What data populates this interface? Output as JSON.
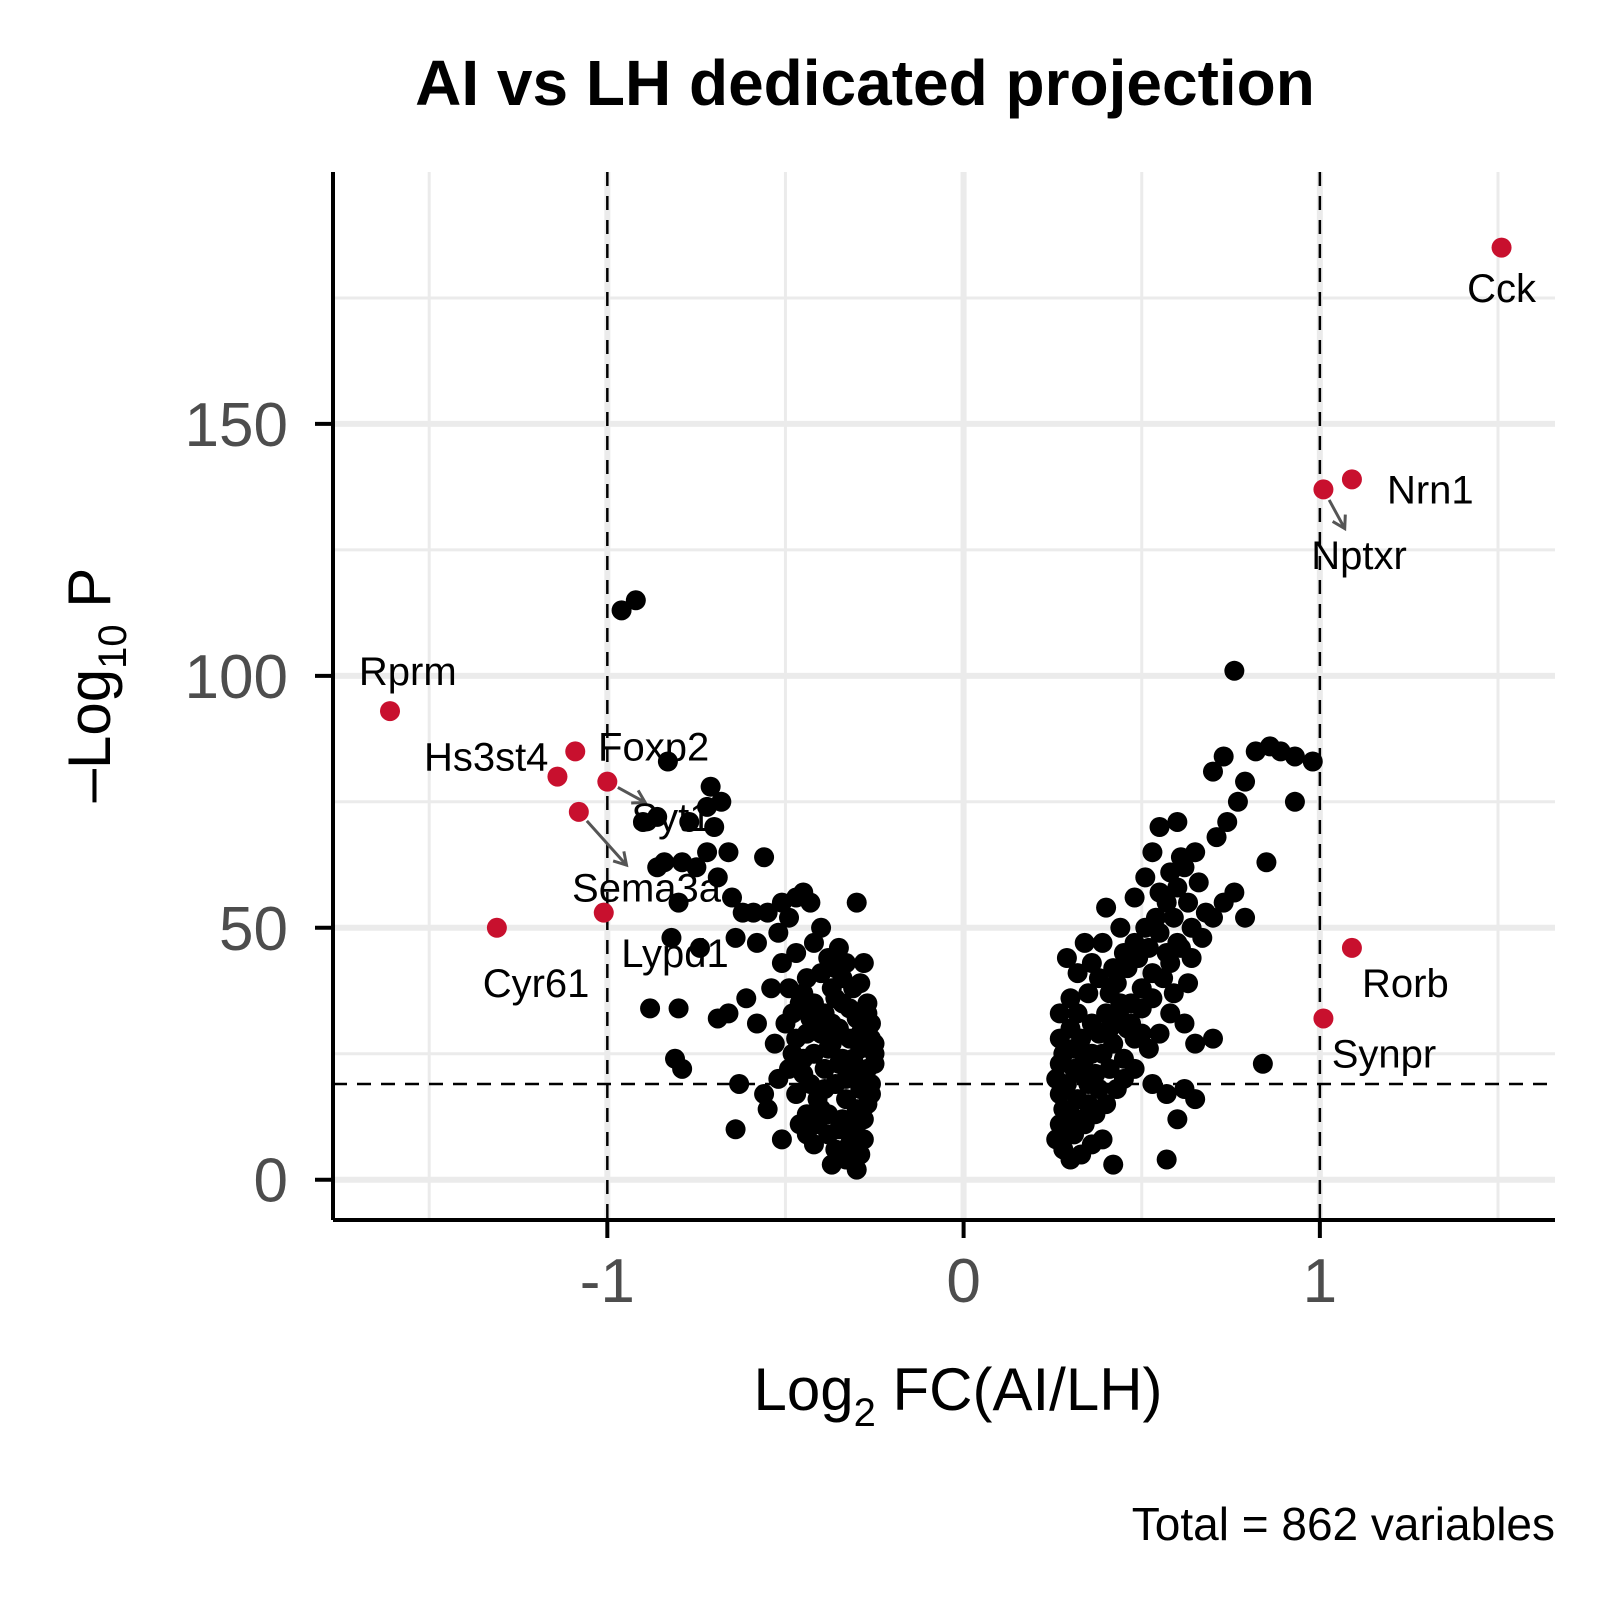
{
  "chart_data": {
    "type": "scatter",
    "title": "AI vs LH dedicated projection",
    "xlabel": {
      "prefix": "Log",
      "sub": "2",
      "suffix": " FC(AI/LH)"
    },
    "ylabel": {
      "prefix": "–Log",
      "sub": "10",
      "suffix": " P"
    },
    "caption": "Total = 862 variables",
    "xlim": [
      -1.77,
      1.66
    ],
    "ylim": [
      -8,
      200
    ],
    "x_ticks": [
      {
        "value": -1,
        "label": "-1"
      },
      {
        "value": 0,
        "label": "0"
      },
      {
        "value": 1,
        "label": "1"
      }
    ],
    "y_ticks": [
      {
        "value": 0,
        "label": "0"
      },
      {
        "value": 50,
        "label": "50"
      },
      {
        "value": 100,
        "label": "100"
      },
      {
        "value": 150,
        "label": "150"
      }
    ],
    "grid": true,
    "fc_cutoff": [
      -1,
      1
    ],
    "p_cutoff": 19,
    "colors": {
      "significant": "#c8102e",
      "other": "#000000",
      "grid": "#ebebeb",
      "connector": "#555555"
    },
    "highlighted": [
      {
        "gene": "Cck",
        "x": 1.51,
        "y": 185,
        "lx": 1.51,
        "ly": 177
      },
      {
        "gene": "Nrn1",
        "x": 1.09,
        "y": 139,
        "lx": 1.31,
        "ly": 137
      },
      {
        "gene": "Nptxr",
        "x": 1.01,
        "y": 137,
        "lx": 1.11,
        "ly": 124,
        "arrow": true
      },
      {
        "gene": "Rorb",
        "x": 1.09,
        "y": 46,
        "lx": 1.24,
        "ly": 39
      },
      {
        "gene": "Synpr",
        "x": 1.01,
        "y": 32,
        "lx": 1.18,
        "ly": 25
      },
      {
        "gene": "Rprm",
        "x": -1.61,
        "y": 93,
        "lx": -1.56,
        "ly": 101
      },
      {
        "gene": "Hs3st4",
        "x": -1.14,
        "y": 80,
        "lx": -1.34,
        "ly": 84
      },
      {
        "gene": "Foxp2",
        "x": -1.09,
        "y": 85,
        "lx": -0.87,
        "ly": 86
      },
      {
        "gene": "Syt1",
        "x": -1.0,
        "y": 79,
        "lx": -0.82,
        "ly": 72,
        "arrow": true
      },
      {
        "gene": "Sema3a",
        "x": -1.08,
        "y": 73,
        "lx": -0.89,
        "ly": 58,
        "arrow": true
      },
      {
        "gene": "Lypd1",
        "x": -1.01,
        "y": 53,
        "lx": -0.81,
        "ly": 45
      },
      {
        "gene": "Cyr61",
        "x": -1.31,
        "y": 50,
        "lx": -1.2,
        "ly": 39
      }
    ],
    "points": [
      [
        -0.96,
        113
      ],
      [
        -0.92,
        115
      ],
      [
        0.76,
        101
      ],
      [
        -0.83,
        83
      ],
      [
        -0.71,
        78
      ],
      [
        -0.68,
        75
      ],
      [
        -0.72,
        74
      ],
      [
        -0.7,
        70
      ],
      [
        -0.86,
        72
      ],
      [
        -0.9,
        71
      ],
      [
        -0.77,
        71
      ],
      [
        -0.66,
        65
      ],
      [
        -0.72,
        65
      ],
      [
        -0.79,
        63
      ],
      [
        -0.84,
        63
      ],
      [
        -0.86,
        62
      ],
      [
        -0.75,
        62
      ],
      [
        -0.56,
        64
      ],
      [
        -0.69,
        60
      ],
      [
        -0.8,
        55
      ],
      [
        -0.65,
        56
      ],
      [
        -0.59,
        53
      ],
      [
        -0.62,
        53
      ],
      [
        -0.55,
        53
      ],
      [
        -0.49,
        52
      ],
      [
        -0.51,
        55
      ],
      [
        -0.47,
        56
      ],
      [
        -0.45,
        57
      ],
      [
        -0.43,
        55
      ],
      [
        -0.52,
        49
      ],
      [
        -0.58,
        47
      ],
      [
        -0.64,
        48
      ],
      [
        -0.74,
        46
      ],
      [
        -0.82,
        48
      ],
      [
        -0.4,
        50
      ],
      [
        -0.35,
        46
      ],
      [
        -0.3,
        55
      ],
      [
        -0.28,
        43
      ],
      [
        -0.44,
        40
      ],
      [
        -0.54,
        38
      ],
      [
        -0.61,
        36
      ],
      [
        -0.66,
        33
      ],
      [
        -0.69,
        32
      ],
      [
        -0.8,
        34
      ],
      [
        -0.88,
        34
      ],
      [
        -0.81,
        24
      ],
      [
        -0.79,
        22
      ],
      [
        -0.63,
        19
      ],
      [
        -0.56,
        17
      ],
      [
        -0.55,
        14
      ],
      [
        -0.64,
        10
      ],
      [
        -0.51,
        8
      ],
      [
        -0.42,
        7
      ],
      [
        -0.36,
        6
      ],
      [
        -0.33,
        4
      ],
      [
        -0.3,
        2
      ],
      [
        -0.37,
        3
      ],
      [
        -0.46,
        11
      ],
      [
        -0.49,
        22
      ],
      [
        -0.53,
        27
      ],
      [
        -0.58,
        31
      ],
      [
        -0.48,
        33
      ],
      [
        -0.45,
        37
      ],
      [
        -0.4,
        41
      ],
      [
        -0.38,
        44
      ],
      [
        -0.33,
        43
      ],
      [
        -0.29,
        39
      ],
      [
        -0.27,
        35
      ],
      [
        -0.26,
        31
      ],
      [
        -0.25,
        27
      ],
      [
        -0.25,
        23
      ],
      [
        -0.26,
        19
      ],
      [
        -0.27,
        15
      ],
      [
        -0.28,
        12
      ],
      [
        -0.3,
        9
      ],
      [
        -0.32,
        7
      ],
      [
        -0.35,
        10
      ],
      [
        -0.38,
        13
      ],
      [
        -0.41,
        16
      ],
      [
        -0.43,
        19
      ],
      [
        -0.45,
        24
      ],
      [
        -0.47,
        28
      ],
      [
        -0.5,
        31
      ],
      [
        -0.41,
        30
      ],
      [
        -0.37,
        27
      ],
      [
        -0.34,
        24
      ],
      [
        -0.31,
        21
      ],
      [
        -0.29,
        18
      ],
      [
        -0.33,
        16
      ],
      [
        -0.36,
        19
      ],
      [
        -0.39,
        22
      ],
      [
        -0.42,
        25
      ],
      [
        -0.44,
        29
      ],
      [
        -0.39,
        33
      ],
      [
        -0.35,
        30
      ],
      [
        -0.32,
        28
      ],
      [
        -0.29,
        26
      ],
      [
        -0.27,
        22
      ],
      [
        -0.3,
        14
      ],
      [
        -0.34,
        12
      ],
      [
        -0.38,
        9
      ],
      [
        -0.4,
        14
      ],
      [
        -0.44,
        13
      ],
      [
        -0.47,
        17
      ],
      [
        -0.52,
        20
      ],
      [
        -0.36,
        36
      ],
      [
        -0.32,
        34
      ],
      [
        -0.28,
        31
      ],
      [
        -0.31,
        38
      ],
      [
        -0.34,
        40
      ],
      [
        -0.37,
        38
      ],
      [
        -0.42,
        35
      ],
      [
        -0.46,
        35
      ],
      [
        -0.49,
        38
      ],
      [
        -0.51,
        43
      ],
      [
        -0.47,
        45
      ],
      [
        -0.42,
        47
      ],
      [
        -0.36,
        42
      ],
      [
        -0.3,
        32
      ],
      [
        -0.26,
        28
      ],
      [
        -0.25,
        25
      ],
      [
        -0.26,
        17
      ],
      [
        -0.28,
        20
      ],
      [
        -0.31,
        24
      ],
      [
        -0.33,
        20
      ],
      [
        -0.35,
        23
      ],
      [
        -0.38,
        26
      ],
      [
        -0.4,
        29
      ],
      [
        -0.43,
        32
      ],
      [
        -0.45,
        21
      ],
      [
        -0.48,
        25
      ],
      [
        -0.37,
        31
      ],
      [
        -0.34,
        35
      ],
      [
        -0.29,
        29
      ],
      [
        -0.27,
        33
      ],
      [
        -0.39,
        18
      ],
      [
        -0.41,
        11
      ],
      [
        -0.44,
        9
      ],
      [
        -0.31,
        11
      ],
      [
        -0.28,
        8
      ],
      [
        -0.32,
        5
      ],
      [
        -0.29,
        5
      ],
      [
        0.26,
        20
      ],
      [
        0.27,
        17
      ],
      [
        0.28,
        14
      ],
      [
        0.27,
        11
      ],
      [
        0.26,
        8
      ],
      [
        0.28,
        6
      ],
      [
        0.3,
        4
      ],
      [
        0.33,
        5
      ],
      [
        0.36,
        7
      ],
      [
        0.39,
        8
      ],
      [
        0.31,
        9
      ],
      [
        0.34,
        11
      ],
      [
        0.37,
        13
      ],
      [
        0.4,
        15
      ],
      [
        0.43,
        18
      ],
      [
        0.3,
        13
      ],
      [
        0.32,
        16
      ],
      [
        0.35,
        19
      ],
      [
        0.29,
        19
      ],
      [
        0.31,
        22
      ],
      [
        0.34,
        24
      ],
      [
        0.37,
        21
      ],
      [
        0.39,
        25
      ],
      [
        0.42,
        27
      ],
      [
        0.45,
        24
      ],
      [
        0.48,
        28
      ],
      [
        0.33,
        28
      ],
      [
        0.28,
        25
      ],
      [
        0.27,
        28
      ],
      [
        0.3,
        30
      ],
      [
        0.32,
        33
      ],
      [
        0.36,
        31
      ],
      [
        0.4,
        33
      ],
      [
        0.44,
        32
      ],
      [
        0.47,
        35
      ],
      [
        0.5,
        38
      ],
      [
        0.53,
        36
      ],
      [
        0.56,
        40
      ],
      [
        0.58,
        43
      ],
      [
        0.61,
        46
      ],
      [
        0.64,
        44
      ],
      [
        0.67,
        48
      ],
      [
        0.7,
        52
      ],
      [
        0.73,
        55
      ],
      [
        0.76,
        57
      ],
      [
        0.79,
        52
      ],
      [
        0.35,
        37
      ],
      [
        0.38,
        40
      ],
      [
        0.42,
        42
      ],
      [
        0.45,
        45
      ],
      [
        0.48,
        47
      ],
      [
        0.51,
        50
      ],
      [
        0.54,
        52
      ],
      [
        0.57,
        55
      ],
      [
        0.6,
        58
      ],
      [
        0.62,
        62
      ],
      [
        0.65,
        65
      ],
      [
        0.71,
        68
      ],
      [
        0.74,
        71
      ],
      [
        0.77,
        75
      ],
      [
        0.79,
        79
      ],
      [
        0.7,
        81
      ],
      [
        0.73,
        84
      ],
      [
        0.82,
        85
      ],
      [
        0.86,
        86
      ],
      [
        0.89,
        85
      ],
      [
        0.93,
        84
      ],
      [
        0.98,
        83
      ],
      [
        0.93,
        75
      ],
      [
        0.85,
        63
      ],
      [
        0.84,
        23
      ],
      [
        0.7,
        28
      ],
      [
        0.65,
        27
      ],
      [
        0.62,
        31
      ],
      [
        0.58,
        33
      ],
      [
        0.55,
        29
      ],
      [
        0.52,
        26
      ],
      [
        0.48,
        22
      ],
      [
        0.45,
        20
      ],
      [
        0.53,
        19
      ],
      [
        0.57,
        17
      ],
      [
        0.62,
        18
      ],
      [
        0.65,
        16
      ],
      [
        0.6,
        12
      ],
      [
        0.57,
        4
      ],
      [
        0.42,
        3
      ],
      [
        0.51,
        60
      ],
      [
        0.55,
        57
      ],
      [
        0.58,
        61
      ],
      [
        0.61,
        64
      ],
      [
        0.55,
        70
      ],
      [
        0.6,
        71
      ],
      [
        0.53,
        65
      ],
      [
        0.48,
        56
      ],
      [
        0.44,
        50
      ],
      [
        0.4,
        54
      ],
      [
        0.39,
        47
      ],
      [
        0.34,
        47
      ],
      [
        0.29,
        44
      ],
      [
        0.32,
        41
      ],
      [
        0.36,
        43
      ],
      [
        0.3,
        36
      ],
      [
        0.27,
        33
      ],
      [
        0.33,
        21
      ],
      [
        0.36,
        25
      ],
      [
        0.38,
        29
      ],
      [
        0.41,
        37
      ],
      [
        0.43,
        39
      ],
      [
        0.46,
        42
      ],
      [
        0.49,
        44
      ],
      [
        0.52,
        46
      ],
      [
        0.55,
        49
      ],
      [
        0.59,
        52
      ],
      [
        0.63,
        55
      ],
      [
        0.66,
        59
      ],
      [
        0.68,
        53
      ],
      [
        0.64,
        50
      ],
      [
        0.6,
        47
      ],
      [
        0.57,
        45
      ],
      [
        0.53,
        41
      ],
      [
        0.5,
        34
      ],
      [
        0.46,
        30
      ],
      [
        0.41,
        22
      ],
      [
        0.38,
        18
      ],
      [
        0.35,
        15
      ],
      [
        0.32,
        12
      ],
      [
        0.29,
        10
      ],
      [
        0.27,
        23
      ],
      [
        0.31,
        26
      ],
      [
        0.41,
        30
      ],
      [
        0.44,
        35
      ],
      [
        0.47,
        31
      ],
      [
        0.5,
        29
      ],
      [
        0.59,
        37
      ],
      [
        0.63,
        39
      ]
    ]
  }
}
